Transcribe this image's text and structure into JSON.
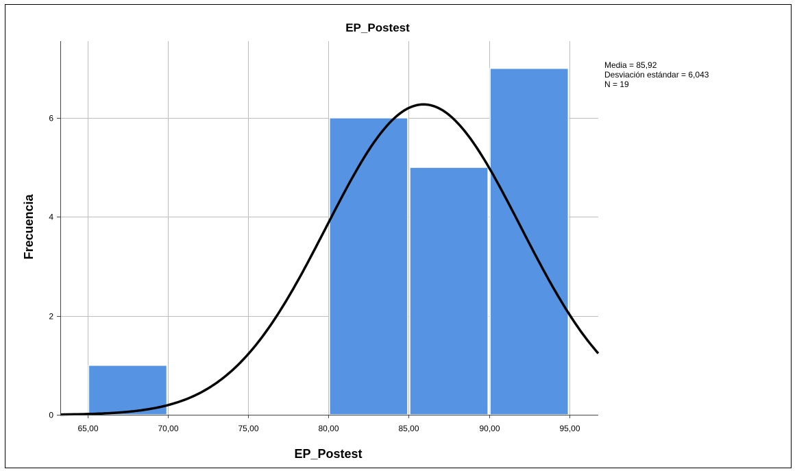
{
  "chart_data": {
    "type": "bar",
    "title": "EP_Postest",
    "xlabel": "EP_Postest",
    "ylabel": "Frecuencia",
    "x_ticks": [
      "65,00",
      "70,00",
      "75,00",
      "80,00",
      "85,00",
      "90,00",
      "95,00"
    ],
    "x_tick_values": [
      65,
      70,
      75,
      80,
      85,
      90,
      95
    ],
    "y_ticks": [
      "0",
      "2",
      "4",
      "6"
    ],
    "y_tick_values": [
      0,
      2,
      4,
      6
    ],
    "xlim": [
      63.3,
      96.8
    ],
    "ylim": [
      0,
      7.55
    ],
    "bins": [
      {
        "start": 65,
        "end": 70,
        "value": 1
      },
      {
        "start": 70,
        "end": 75,
        "value": 0
      },
      {
        "start": 75,
        "end": 80,
        "value": 0
      },
      {
        "start": 80,
        "end": 85,
        "value": 6
      },
      {
        "start": 85,
        "end": 90,
        "value": 5
      },
      {
        "start": 90,
        "end": 95,
        "value": 7
      }
    ],
    "normal_curve": {
      "mean": 85.92,
      "std": 6.043,
      "n": 19,
      "bin_width": 5
    },
    "grid": true,
    "legend_position": "top-right",
    "stats": {
      "mean_label": "Media = 85,92",
      "std_label": "Desviación estándar = 6,043",
      "n_label": "N = 19"
    },
    "colors": {
      "bar": "#5694e3",
      "curve": "#000000",
      "grid": "#bdbdbd"
    }
  }
}
